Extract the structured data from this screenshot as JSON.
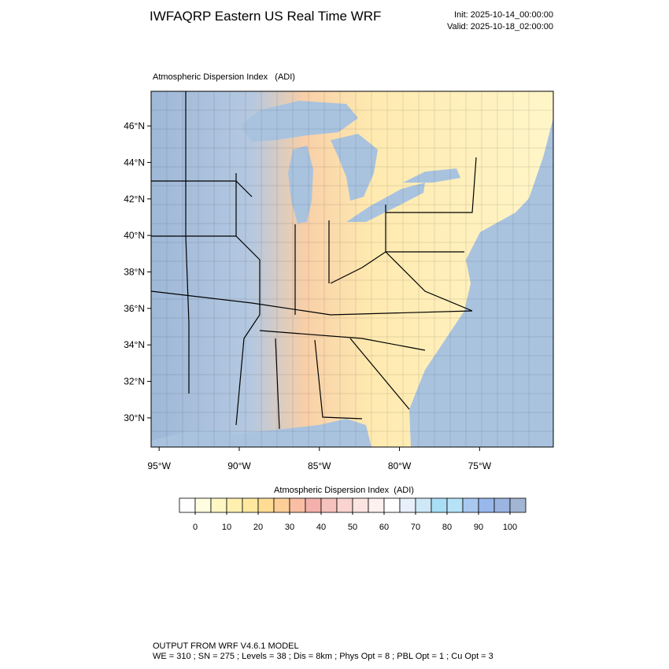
{
  "header": {
    "title": "IWFAQRP Eastern US Real Time WRF",
    "init": "Init: 2025-10-14_00:00:00",
    "valid": "Valid: 2025-10-18_02:00:00"
  },
  "map": {
    "title": "Atmospheric Dispersion Index   (ADI)",
    "xlim": [
      -95.5,
      -70.4
    ],
    "ylim": [
      28.4,
      47.9
    ],
    "xticks": [
      {
        "value": -95,
        "label": "95°W"
      },
      {
        "value": -90,
        "label": "90°W"
      },
      {
        "value": -85,
        "label": "85°W"
      },
      {
        "value": -80,
        "label": "80°W"
      },
      {
        "value": -75,
        "label": "75°W"
      }
    ],
    "yticks": [
      {
        "value": 30,
        "label": "30°N"
      },
      {
        "value": 32,
        "label": "32°N"
      },
      {
        "value": 34,
        "label": "34°N"
      },
      {
        "value": 36,
        "label": "36°N"
      },
      {
        "value": 38,
        "label": "38°N"
      },
      {
        "value": 40,
        "label": "40°N"
      },
      {
        "value": 42,
        "label": "42°N"
      },
      {
        "value": 44,
        "label": "44°N"
      },
      {
        "value": 46,
        "label": "46°N"
      }
    ]
  },
  "colorbar": {
    "title": "Atmospheric Dispersion Index  (ADI)",
    "clim": [
      -5,
      105
    ],
    "ticks": [
      0,
      10,
      20,
      30,
      40,
      50,
      60,
      70,
      80,
      90,
      100
    ],
    "colors": [
      "#ffffff",
      "#fffde0",
      "#fff6c4",
      "#fff0b0",
      "#ffe8a0",
      "#fedc94",
      "#fccf98",
      "#f9bea4",
      "#f4b0aa",
      "#f6c2bc",
      "#f9d4d0",
      "#fce4e0",
      "#fdf0ee",
      "#ffffff",
      "#e8f0fc",
      "#cfe8f8",
      "#a8def6",
      "#b6e2f8",
      "#a8c8f0",
      "#98b8ec",
      "#9cb4e0",
      "#a2b6d4"
    ]
  },
  "footer": {
    "line1": "OUTPUT FROM WRF V4.6.1 MODEL",
    "line2": "WE = 310 ; SN = 275 ; Levels = 38 ; Dis = 8km ; Phys Opt = 8 ; PBL Opt = 1 ; Cu Opt = 3"
  }
}
